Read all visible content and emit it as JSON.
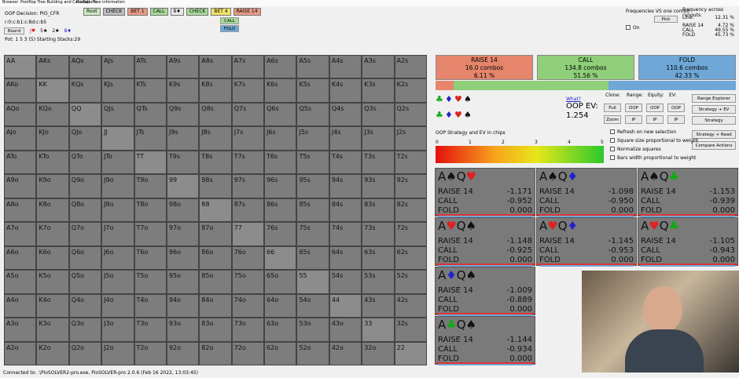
{
  "menu": [
    "Browser",
    "Postflop Tree Building and Calculations",
    "Preflop",
    "Tree information"
  ],
  "info": {
    "decision": "OOP Decision:  PIO_CFR",
    "line": "r:0:c:b1:c:8d:c:b5",
    "board_button": "Board",
    "board": [
      "J♥",
      "5♠",
      "2♠",
      "8♦"
    ],
    "pot": "Pot: 1 5 3 (5) Starting Stacks:29"
  },
  "actions": [
    "Root",
    "CHECK",
    "BET 1",
    "CALL",
    "8♦",
    "CHECK",
    "BET 4",
    "RAISE 14"
  ],
  "sub_actions": [
    "CALL",
    "FOLD"
  ],
  "freq_panel": {
    "title": "Frequencies VS one combo",
    "pick": "Pick",
    "on": "On",
    "across": "Frequency across runouts:",
    "rows": [
      [
        "Line:",
        "12.31 %"
      ],
      [
        "RAISE 14",
        "4.72 %"
      ],
      [
        "CALL",
        "49.55 %"
      ],
      [
        "FOLD",
        "45.73 %"
      ]
    ]
  },
  "grid": [
    [
      "AA",
      "AKs",
      "AQs",
      "AJs",
      "ATs",
      "A9s",
      "A8s",
      "A7s",
      "A6s",
      "A5s",
      "A4s",
      "A3s",
      "A2s"
    ],
    [
      "AKo",
      "KK",
      "KQs",
      "KJs",
      "KTs",
      "K9s",
      "K8s",
      "K7s",
      "K6s",
      "K5s",
      "K4s",
      "K3s",
      "K2s"
    ],
    [
      "AQo",
      "KQo",
      "QQ",
      "QJs",
      "QTs",
      "Q9s",
      "Q8s",
      "Q7s",
      "Q6s",
      "Q5s",
      "Q4s",
      "Q3s",
      "Q2s"
    ],
    [
      "AJo",
      "KJo",
      "QJo",
      "JJ",
      "JTs",
      "J9s",
      "J8s",
      "J7s",
      "J6s",
      "J5s",
      "J4s",
      "J3s",
      "J2s"
    ],
    [
      "ATo",
      "KTo",
      "QTo",
      "JTo",
      "TT",
      "T9s",
      "T8s",
      "T7s",
      "T6s",
      "T5s",
      "T4s",
      "T3s",
      "T2s"
    ],
    [
      "A9o",
      "K9o",
      "Q9o",
      "J9o",
      "T9o",
      "99",
      "98s",
      "97s",
      "96s",
      "95s",
      "94s",
      "93s",
      "92s"
    ],
    [
      "A8o",
      "K8o",
      "Q8o",
      "J8o",
      "T8o",
      "98o",
      "88",
      "87s",
      "86s",
      "85s",
      "84s",
      "83s",
      "82s"
    ],
    [
      "A7o",
      "K7o",
      "Q7o",
      "J7o",
      "T7o",
      "97o",
      "87o",
      "77",
      "76s",
      "75s",
      "74s",
      "73s",
      "72s"
    ],
    [
      "A6o",
      "K6o",
      "Q6o",
      "J6o",
      "T6o",
      "96o",
      "86o",
      "76o",
      "66",
      "65s",
      "64s",
      "63s",
      "62s"
    ],
    [
      "A5o",
      "K5o",
      "Q5o",
      "J5o",
      "T5o",
      "95o",
      "85o",
      "75o",
      "65o",
      "55",
      "54s",
      "53s",
      "52s"
    ],
    [
      "A4o",
      "K4o",
      "Q4o",
      "J4o",
      "T4o",
      "94o",
      "84o",
      "74o",
      "64o",
      "54o",
      "44",
      "43s",
      "42s"
    ],
    [
      "A3o",
      "K3o",
      "Q3o",
      "J3o",
      "T3o",
      "93o",
      "83o",
      "73o",
      "63o",
      "53o",
      "43o",
      "33",
      "32s"
    ],
    [
      "A2o",
      "K2o",
      "Q2o",
      "J2o",
      "T2o",
      "92o",
      "82o",
      "72o",
      "62o",
      "52o",
      "42o",
      "32o",
      "22"
    ]
  ],
  "summary": [
    {
      "name": "RAISE 14",
      "combos": "16.0 combos",
      "pct": "6.11 %",
      "share": 6.11,
      "color": "#e5856b"
    },
    {
      "name": "CALL",
      "combos": "134.8 combos",
      "pct": "51.56 %",
      "share": 51.56,
      "color": "#8fcf7a"
    },
    {
      "name": "FOLD",
      "combos": "110.6 combos",
      "pct": "42.33 %",
      "share": 42.33,
      "color": "#6fa8d6"
    }
  ],
  "ev": {
    "what": "What?",
    "label": "OOP EV:",
    "value": "1.254"
  },
  "controls": {
    "heads": [
      "Clone:",
      "Range:",
      "Equity:",
      "EV:"
    ],
    "col1": [
      "Full",
      "Zoom"
    ],
    "pairs": [
      "OOP",
      "IP"
    ],
    "right": [
      "Range Explorer",
      "Strategy + EV",
      "Strategy",
      "Strategy + Read",
      "Compare Actions"
    ],
    "checks": [
      "Refresh on new selection",
      "Square size proportional to weight",
      "Normalize squares",
      "Bars width proportional to weight"
    ]
  },
  "scale": {
    "title": "OOP Strategy and EV in chips",
    "ticks": [
      0,
      1,
      2,
      3,
      4,
      5
    ]
  },
  "combos": [
    {
      "cards": [
        "A",
        "♠",
        "Q",
        "♥"
      ],
      "rows": [
        [
          "RAISE 14",
          "-1.171"
        ],
        [
          "CALL",
          "-0.952"
        ],
        [
          "FOLD",
          "0.000"
        ]
      ]
    },
    {
      "cards": [
        "A",
        "♠",
        "Q",
        "♦"
      ],
      "rows": [
        [
          "RAISE 14",
          "-1.098"
        ],
        [
          "CALL",
          "-0.950"
        ],
        [
          "FOLD",
          "0.000"
        ]
      ]
    },
    {
      "cards": [
        "A",
        "♠",
        "Q",
        "♣"
      ],
      "rows": [
        [
          "RAISE 14",
          "-1.153"
        ],
        [
          "CALL",
          "-0.939"
        ],
        [
          "FOLD",
          "0.000"
        ]
      ]
    },
    {
      "cards": [
        "A",
        "♥",
        "Q",
        "♠"
      ],
      "rows": [
        [
          "RAISE 14",
          "-1.148"
        ],
        [
          "CALL",
          "-0.925"
        ],
        [
          "FOLD",
          "0.000"
        ]
      ]
    },
    {
      "cards": [
        "A",
        "♥",
        "Q",
        "♦"
      ],
      "rows": [
        [
          "RAISE 14",
          "-1.145"
        ],
        [
          "CALL",
          "-0.953"
        ],
        [
          "FOLD",
          "0.000"
        ]
      ]
    },
    {
      "cards": [
        "A",
        "♥",
        "Q",
        "♣"
      ],
      "rows": [
        [
          "RAISE 14",
          "-1.105"
        ],
        [
          "CALL",
          "-0.943"
        ],
        [
          "FOLD",
          "0.000"
        ]
      ]
    },
    {
      "cards": [
        "A",
        "♦",
        "Q",
        "♠"
      ],
      "rows": [
        [
          "RAISE 14",
          "-1.009"
        ],
        [
          "CALL",
          "-0.889"
        ],
        [
          "FOLD",
          "0.000"
        ]
      ]
    },
    {
      "cards": [
        "A",
        "♣",
        "Q",
        "♠"
      ],
      "rows": [
        [
          "RAISE 14",
          "-1.144"
        ],
        [
          "CALL",
          "-0.934"
        ],
        [
          "FOLD",
          "0.000"
        ]
      ]
    }
  ],
  "status": "Connected to: .\\PioSOLVER2-pro.exe, PioSOLVER-pro 2.0.6 (Feb 16 2022, 13:03:45)"
}
